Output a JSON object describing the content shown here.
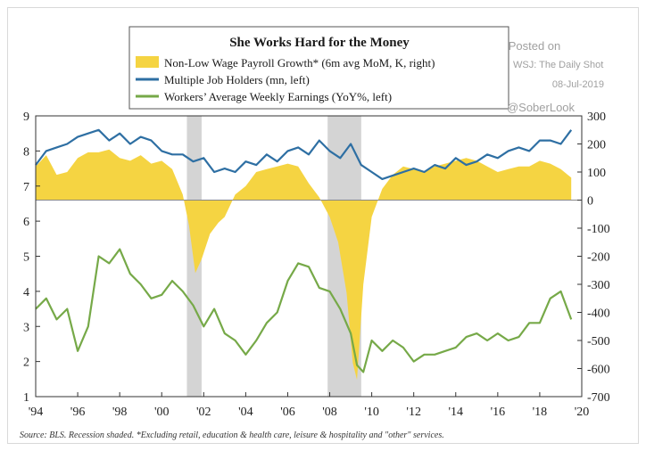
{
  "chart_data": {
    "type": "line",
    "title": "She Works Hard for the Money",
    "legend": [
      {
        "label": "Non-Low Wage Payroll Growth* (6m avg MoM, K, right)",
        "color": "#f5d442"
      },
      {
        "label": "Multiple Job Holders (mn, left)",
        "color": "#2e6fa3"
      },
      {
        "label": "Workers’ Average Weekly Earnings (YoY%, left)",
        "color": "#76a948"
      }
    ],
    "legend_position": "top-center",
    "x_ticks": [
      "'94",
      "'96",
      "'98",
      "'00",
      "'02",
      "'04",
      "'06",
      "'08",
      "'10",
      "'12",
      "'14",
      "'16",
      "'18",
      "'20"
    ],
    "xlim": [
      1994,
      2020
    ],
    "y_left_ticks": [
      "1",
      "2",
      "3",
      "4",
      "5",
      "6",
      "7",
      "8",
      "9"
    ],
    "ylim_left": [
      1,
      9
    ],
    "y_right_ticks": [
      "-700",
      "-600",
      "-500",
      "-400",
      "-300",
      "-200",
      "-100",
      "0",
      "100",
      "200",
      "300"
    ],
    "ylim_right": [
      -700,
      300
    ],
    "recessions": [
      [
        2001.2,
        2001.9
      ],
      [
        2007.9,
        2009.5
      ]
    ],
    "series": [
      {
        "name": "Non-Low Wage Payroll Growth* (6m avg MoM, K, right)",
        "type": "area",
        "axis": "right",
        "x": [
          1994.0,
          1994.5,
          1995.0,
          1995.5,
          1996.0,
          1996.5,
          1997.0,
          1997.5,
          1998.0,
          1998.5,
          1999.0,
          1999.5,
          2000.0,
          2000.5,
          2001.0,
          2001.3,
          2001.6,
          2001.9,
          2002.3,
          2002.7,
          2003.0,
          2003.5,
          2004.0,
          2004.5,
          2005.0,
          2005.5,
          2006.0,
          2006.5,
          2007.0,
          2007.5,
          2008.0,
          2008.4,
          2008.8,
          2009.1,
          2009.3,
          2009.6,
          2010.0,
          2010.5,
          2011.0,
          2011.5,
          2012.0,
          2012.5,
          2013.0,
          2013.5,
          2014.0,
          2014.5,
          2015.0,
          2015.5,
          2016.0,
          2016.5,
          2017.0,
          2017.5,
          2018.0,
          2018.5,
          2019.0,
          2019.5
        ],
        "values": [
          120,
          160,
          90,
          100,
          150,
          170,
          170,
          180,
          150,
          140,
          160,
          130,
          140,
          110,
          20,
          -90,
          -260,
          -210,
          -120,
          -80,
          -60,
          20,
          50,
          100,
          110,
          120,
          130,
          120,
          60,
          10,
          -60,
          -150,
          -330,
          -580,
          -640,
          -300,
          -60,
          40,
          90,
          120,
          110,
          100,
          120,
          130,
          140,
          150,
          140,
          120,
          100,
          110,
          120,
          120,
          140,
          130,
          110,
          80
        ]
      },
      {
        "name": "Multiple Job Holders (mn, left)",
        "type": "line",
        "axis": "left",
        "x": [
          1994.0,
          1994.5,
          1995.0,
          1995.5,
          1996.0,
          1996.5,
          1997.0,
          1997.5,
          1998.0,
          1998.5,
          1999.0,
          1999.5,
          2000.0,
          2000.5,
          2001.0,
          2001.5,
          2002.0,
          2002.5,
          2003.0,
          2003.5,
          2004.0,
          2004.5,
          2005.0,
          2005.5,
          2006.0,
          2006.5,
          2007.0,
          2007.5,
          2008.0,
          2008.5,
          2009.0,
          2009.5,
          2010.0,
          2010.5,
          2011.0,
          2011.5,
          2012.0,
          2012.5,
          2013.0,
          2013.5,
          2014.0,
          2014.5,
          2015.0,
          2015.5,
          2016.0,
          2016.5,
          2017.0,
          2017.5,
          2018.0,
          2018.5,
          2019.0,
          2019.5
        ],
        "values": [
          7.6,
          8.0,
          8.1,
          8.2,
          8.4,
          8.5,
          8.6,
          8.3,
          8.5,
          8.2,
          8.4,
          8.3,
          8.0,
          7.9,
          7.9,
          7.7,
          7.8,
          7.4,
          7.5,
          7.4,
          7.7,
          7.6,
          7.9,
          7.7,
          8.0,
          8.1,
          7.9,
          8.3,
          8.0,
          7.8,
          8.2,
          7.6,
          7.4,
          7.2,
          7.3,
          7.4,
          7.5,
          7.4,
          7.6,
          7.5,
          7.8,
          7.6,
          7.7,
          7.9,
          7.8,
          8.0,
          8.1,
          8.0,
          8.3,
          8.3,
          8.2,
          8.6
        ]
      },
      {
        "name": "Workers’ Average Weekly Earnings (YoY%, left)",
        "type": "line",
        "axis": "left",
        "x": [
          1994.0,
          1994.5,
          1995.0,
          1995.5,
          1996.0,
          1996.5,
          1997.0,
          1997.5,
          1998.0,
          1998.5,
          1999.0,
          1999.5,
          2000.0,
          2000.5,
          2001.0,
          2001.5,
          2002.0,
          2002.5,
          2003.0,
          2003.5,
          2004.0,
          2004.5,
          2005.0,
          2005.5,
          2006.0,
          2006.5,
          2007.0,
          2007.5,
          2008.0,
          2008.5,
          2009.0,
          2009.3,
          2009.6,
          2010.0,
          2010.5,
          2011.0,
          2011.5,
          2012.0,
          2012.5,
          2013.0,
          2013.5,
          2014.0,
          2014.5,
          2015.0,
          2015.5,
          2016.0,
          2016.5,
          2017.0,
          2017.5,
          2018.0,
          2018.5,
          2019.0,
          2019.5
        ],
        "values": [
          3.5,
          3.8,
          3.2,
          3.5,
          2.3,
          3.0,
          5.0,
          4.8,
          5.2,
          4.5,
          4.2,
          3.8,
          3.9,
          4.3,
          4.0,
          3.6,
          3.0,
          3.5,
          2.8,
          2.6,
          2.2,
          2.6,
          3.1,
          3.4,
          4.3,
          4.8,
          4.7,
          4.1,
          4.0,
          3.5,
          2.8,
          1.9,
          1.7,
          2.6,
          2.3,
          2.6,
          2.4,
          2.0,
          2.2,
          2.2,
          2.3,
          2.4,
          2.7,
          2.8,
          2.6,
          2.8,
          2.6,
          2.7,
          3.1,
          3.1,
          3.8,
          4.0,
          3.2
        ]
      }
    ],
    "source_note": "Source: BLS. Recession shaded. *Excluding retail, education & health care, leisure & hospitality and \"other\" services."
  },
  "watermark": {
    "line1": "Posted on",
    "line2": "WSJ: The Daily Shot",
    "line3": "08-Jul-2019",
    "handle": "@SoberLook"
  }
}
